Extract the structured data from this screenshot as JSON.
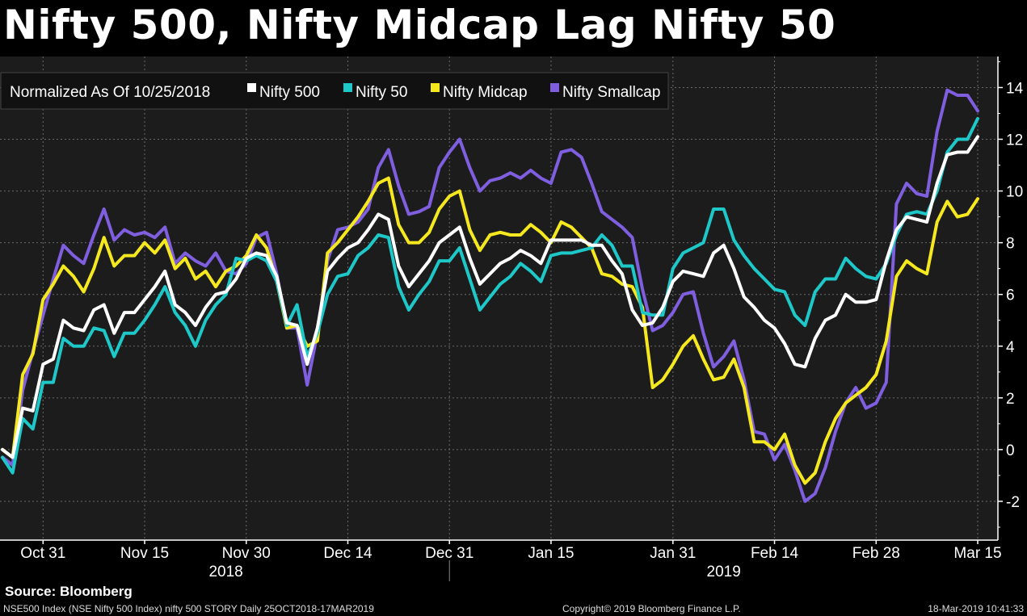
{
  "header": {
    "title": "Nifty 500, Nifty Midcap Lag Nifty 50"
  },
  "footer": {
    "source": "Source: Bloomberg",
    "left": "NSE500 Index (NSE Nifty 500 Index) nifty 500 STORY  Daily 25OCT2018-17MAR2019",
    "center": "Copyright© 2019 Bloomberg Finance L.P.",
    "right": "18-Mar-2019 10:41:33"
  },
  "colors": {
    "nifty500": "#ffffff",
    "nifty50": "#1ec8c8",
    "midcap": "#f5e81e",
    "smallcap": "#7f5fe0"
  },
  "chart_data": {
    "type": "line",
    "title": "Nifty 500, Nifty Midcap Lag Nifty 50",
    "legend_title": "Normalized As Of 10/25/2018",
    "legend_position": "top-left",
    "ylim": [
      -3.5,
      15.2
    ],
    "y_ticks": [
      14,
      12,
      10,
      8,
      6,
      4,
      2,
      0,
      -2
    ],
    "y_tick_labels": [
      "14",
      "12",
      "10",
      "8",
      "6",
      "4",
      "2",
      "0",
      "-2"
    ],
    "x_tick_labels": [
      "Oct 31",
      "Nov 15",
      "Nov 30",
      "Dec 14",
      "Dec 31",
      "Jan 15",
      "Jan 31",
      "Feb 14",
      "Feb 28",
      "Mar 15"
    ],
    "x_tick_index": [
      4,
      14,
      24,
      34,
      44,
      54,
      66,
      76,
      86,
      96
    ],
    "year_labels": [
      "2018",
      "2019"
    ],
    "year_label_index": [
      22,
      71
    ],
    "year_divider_index": 44,
    "grid": true,
    "series": [
      {
        "name": "Nifty 500",
        "key": "nifty500",
        "values": [
          0,
          -0.3,
          1.6,
          1.5,
          3.3,
          3.5,
          5,
          4.7,
          4.6,
          5.4,
          5.6,
          4.5,
          5.3,
          5.3,
          5.8,
          6.3,
          6.9,
          5.6,
          5.3,
          4.8,
          5.5,
          6,
          6.1,
          6.6,
          7.4,
          7.6,
          7.5,
          6.7,
          4.9,
          4.8,
          3.3,
          4.7,
          6.9,
          7.4,
          7.8,
          8,
          8.5,
          9.1,
          8.9,
          7.1,
          6.3,
          6.8,
          7.3,
          8,
          8.3,
          8.6,
          7.4,
          6.4,
          6.8,
          7.2,
          7.4,
          7.7,
          7.5,
          7.2,
          8.1,
          8.1,
          8.1,
          8.1,
          7.9,
          7.9,
          7.3,
          6.8,
          5.4,
          4.8,
          4.9,
          5.5,
          6.5,
          6.9,
          6.8,
          6.7,
          7.6,
          7.9,
          7,
          5.9,
          5.5,
          5,
          4.7,
          4.1,
          3.3,
          3.2,
          4.3,
          5,
          5.2,
          6,
          5.7,
          5.7,
          5.8,
          7.3,
          8.5,
          9,
          8.9,
          8.8,
          10.3,
          11.4,
          11.5,
          11.5,
          12.1
        ]
      },
      {
        "name": "Nifty 50",
        "key": "nifty50",
        "values": [
          -0.3,
          -0.9,
          1.2,
          0.8,
          2.6,
          2.6,
          4.3,
          4,
          4,
          4.7,
          4.6,
          3.6,
          4.5,
          4.5,
          5,
          5.6,
          6.3,
          5.3,
          4.8,
          4,
          5,
          5.6,
          6,
          7.4,
          7.3,
          7.5,
          7.3,
          6.5,
          4.8,
          5.6,
          3.6,
          4.5,
          6,
          6.7,
          6.8,
          7.5,
          7.8,
          8.3,
          8.2,
          6.3,
          5.4,
          6,
          6.5,
          7.3,
          7.3,
          7.8,
          6.6,
          5.4,
          5.9,
          6.4,
          6.7,
          7.2,
          6.9,
          6.5,
          7.5,
          7.6,
          7.6,
          7.7,
          7.8,
          8.3,
          7.9,
          7.1,
          7.1,
          5.3,
          5.2,
          5.2,
          7,
          7.6,
          7.8,
          8,
          9.3,
          9.3,
          8.1,
          7.5,
          7,
          6.6,
          6.2,
          6.1,
          5.2,
          4.8,
          6.1,
          6.6,
          6.6,
          7.4,
          7,
          6.7,
          6.6,
          7.2,
          8.3,
          9.1,
          9.2,
          9.1,
          10,
          11.5,
          12,
          12,
          12.8
        ]
      },
      {
        "name": "Nifty Midcap",
        "key": "midcap",
        "values": [
          0,
          -0.3,
          2.9,
          3.7,
          5.8,
          6.4,
          7.1,
          6.7,
          6.1,
          7,
          8.2,
          7.1,
          7.5,
          7.5,
          8,
          7.6,
          8.1,
          7,
          7.4,
          6.6,
          6.9,
          6.3,
          6.9,
          7.1,
          7.5,
          8.3,
          7.8,
          6.5,
          4.7,
          4.8,
          4,
          4.2,
          7.6,
          8,
          8.5,
          9,
          9.6,
          10.3,
          10.5,
          8.7,
          8,
          8,
          8.4,
          9.3,
          9.8,
          10,
          8.5,
          7.7,
          8.3,
          8.4,
          8.3,
          8.3,
          8.7,
          8.4,
          8,
          8.8,
          8.6,
          8.2,
          7.8,
          6.8,
          6.7,
          6.4,
          6.3,
          5.5,
          2.4,
          2.7,
          3.3,
          4,
          4.4,
          3.5,
          2.7,
          2.8,
          3.5,
          2.4,
          0.3,
          0.3,
          0,
          0.6,
          -0.6,
          -1.3,
          -0.9,
          0.3,
          1.2,
          1.8,
          2.1,
          2.4,
          2.9,
          4.2,
          6.7,
          7.3,
          7,
          6.8,
          8.8,
          9.6,
          9,
          9.1,
          9.7
        ]
      },
      {
        "name": "Nifty Smallcap",
        "key": "smallcap",
        "values": [
          -0.3,
          -0.6,
          2.3,
          3.8,
          5.2,
          6.6,
          7.9,
          7.5,
          7.2,
          8.3,
          9.3,
          8.1,
          8.5,
          8.3,
          8.4,
          8.2,
          8.6,
          7.2,
          7.6,
          7.3,
          7.1,
          7.6,
          6.9,
          6.8,
          7.2,
          8.2,
          8.4,
          6.8,
          4.7,
          4.7,
          2.5,
          4.5,
          7.3,
          8.5,
          8.6,
          8.8,
          9.3,
          10.9,
          11.6,
          10.2,
          9.1,
          9.2,
          9.4,
          10.9,
          11.5,
          12,
          10.9,
          10,
          10.4,
          10.5,
          10.7,
          10.5,
          10.8,
          10.5,
          10.3,
          11.5,
          11.6,
          11.3,
          10.3,
          9.2,
          8.9,
          8.6,
          8.2,
          6.2,
          4.6,
          4.8,
          5.3,
          6,
          6.1,
          4.5,
          3.2,
          3.6,
          4.2,
          2.7,
          0.7,
          0.6,
          -0.4,
          0.2,
          -0.8,
          -2,
          -1.7,
          -0.7,
          0.7,
          1.8,
          2.4,
          1.6,
          1.8,
          2.6,
          9.5,
          10.3,
          9.9,
          9.8,
          12.3,
          13.9,
          13.7,
          13.7,
          13.1
        ]
      }
    ]
  }
}
